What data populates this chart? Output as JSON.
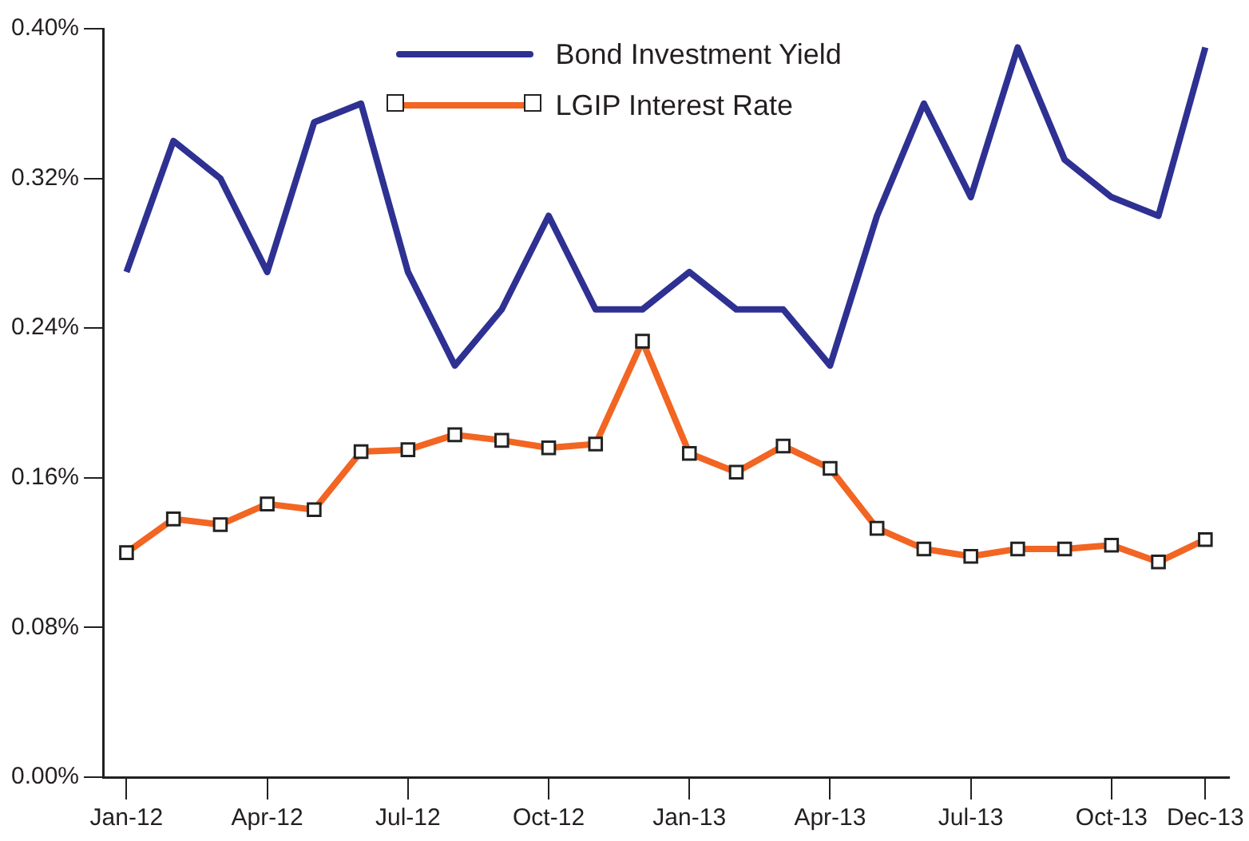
{
  "chart_data": {
    "type": "line",
    "categories": [
      "Jan-12",
      null,
      null,
      "Apr-12",
      null,
      null,
      "Jul-12",
      null,
      null,
      "Oct-12",
      null,
      null,
      "Jan-13",
      null,
      null,
      "Apr-13",
      null,
      null,
      "Jul-13",
      null,
      null,
      "Oct-13",
      null,
      "Dec-13"
    ],
    "series": [
      {
        "name": "Bond Investment Yield",
        "color": "#2e3192",
        "marker": "none",
        "values": [
          0.27,
          0.34,
          0.32,
          0.27,
          0.35,
          0.36,
          0.27,
          0.22,
          0.25,
          0.3,
          0.25,
          0.25,
          0.27,
          0.25,
          0.25,
          0.22,
          0.3,
          0.36,
          0.31,
          0.39,
          0.33,
          0.31,
          0.3,
          0.39
        ]
      },
      {
        "name": "LGIP Interest Rate",
        "color": "#f26522",
        "marker": "square",
        "values": [
          0.12,
          0.138,
          0.135,
          0.146,
          0.143,
          0.174,
          0.175,
          0.183,
          0.18,
          0.176,
          0.178,
          0.233,
          0.173,
          0.163,
          0.177,
          0.165,
          0.133,
          0.122,
          0.118,
          0.122,
          0.122,
          0.124,
          0.115,
          0.127
        ]
      }
    ],
    "ylim": [
      0,
      0.4
    ],
    "yticks": [
      {
        "value": 0,
        "label": "0.00%"
      },
      {
        "value": 0.08,
        "label": "0.08%"
      },
      {
        "value": 0.16,
        "label": "0.16%"
      },
      {
        "value": 0.24,
        "label": "0.24%"
      },
      {
        "value": 0.32,
        "label": "0.32%"
      },
      {
        "value": 0.4,
        "label": "0.40%"
      }
    ],
    "grid": false,
    "legend": "top",
    "line_style": "solid"
  }
}
